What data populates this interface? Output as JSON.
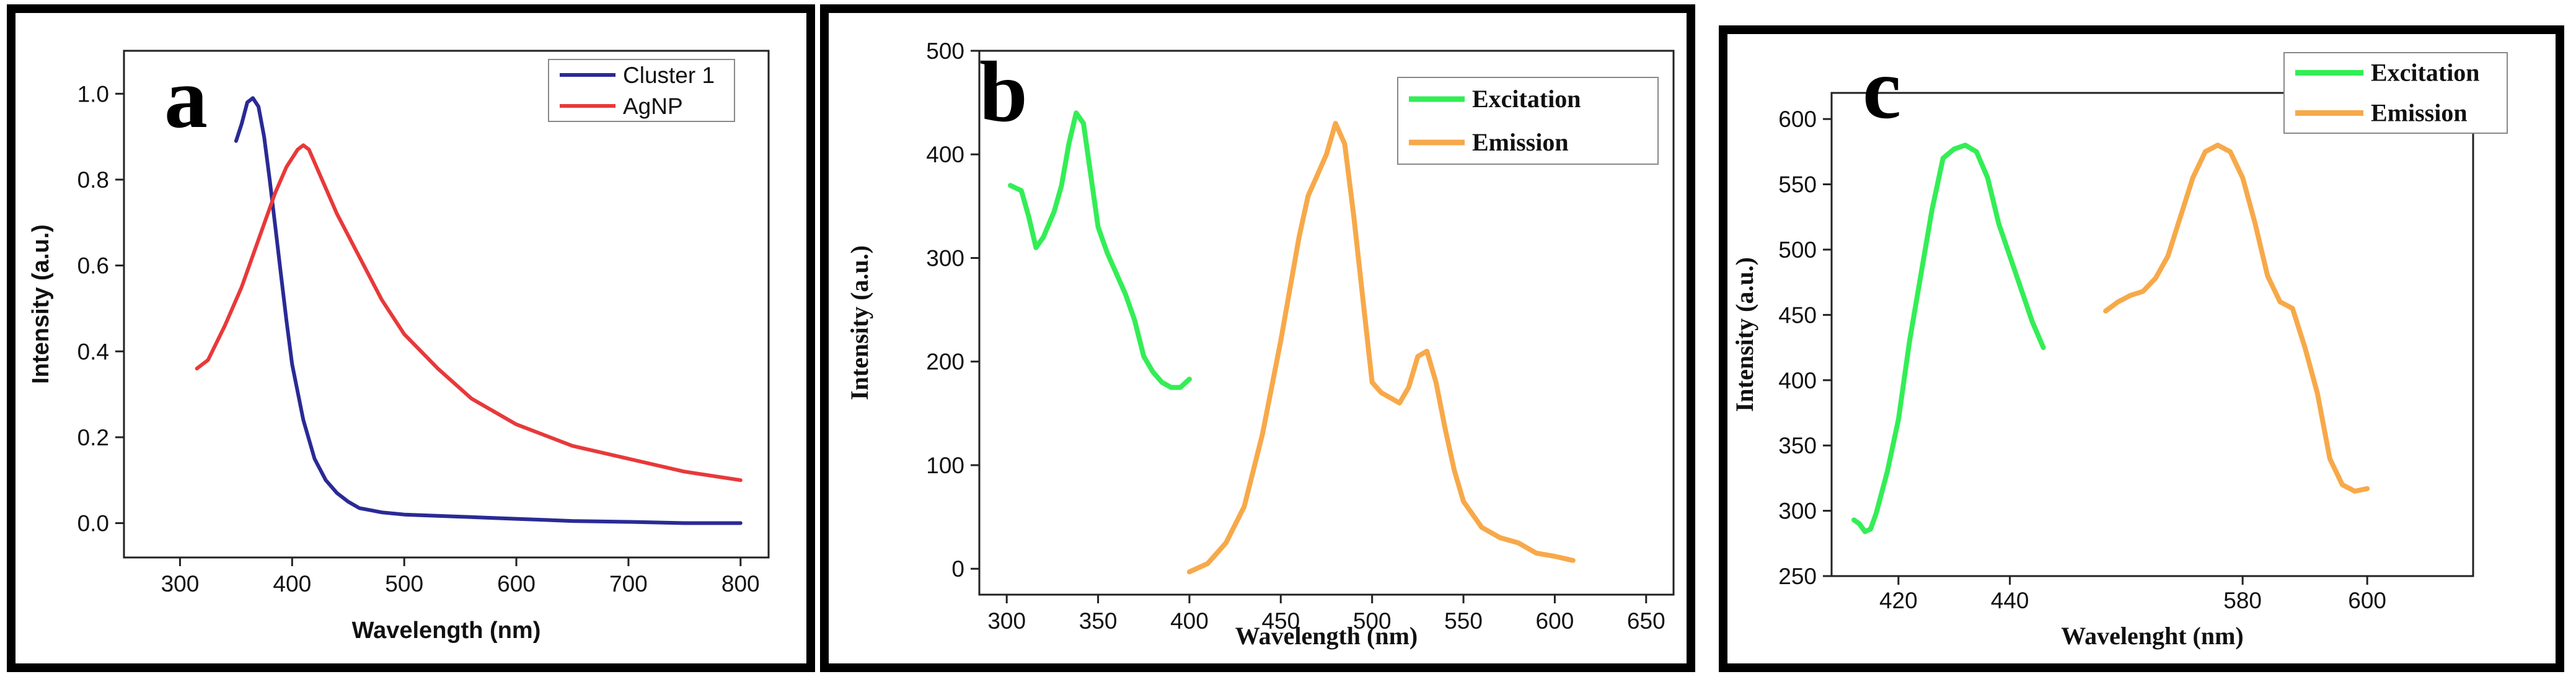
{
  "chart_data": [
    {
      "type": "line",
      "panel": "a",
      "xlabel": "Wavelength (nm)",
      "ylabel": "Intensity (a.u.)",
      "xlim": [
        250,
        825
      ],
      "ylim": [
        -0.08,
        1.1
      ],
      "xticks": [
        300,
        400,
        500,
        600,
        700,
        800
      ],
      "yticks": [
        0.0,
        0.2,
        0.4,
        0.6,
        0.8,
        1.0
      ],
      "ytick_labels": [
        "0.0",
        "0.2",
        "0.4",
        "0.6",
        "0.8",
        "1.0"
      ],
      "legend": "top-right",
      "series": [
        {
          "name": "Cluster 1",
          "color": "#2a2a96",
          "x": [
            350,
            355,
            360,
            365,
            370,
            375,
            380,
            385,
            390,
            395,
            400,
            410,
            420,
            430,
            440,
            450,
            460,
            470,
            480,
            500,
            520,
            550,
            580,
            600,
            650,
            700,
            750,
            800
          ],
          "y": [
            0.89,
            0.93,
            0.98,
            0.99,
            0.97,
            0.9,
            0.8,
            0.69,
            0.58,
            0.47,
            0.37,
            0.24,
            0.15,
            0.1,
            0.07,
            0.05,
            0.035,
            0.03,
            0.025,
            0.02,
            0.018,
            0.015,
            0.012,
            0.01,
            0.005,
            0.003,
            0.0,
            0.0
          ]
        },
        {
          "name": "AgNP",
          "color": "#e8393a",
          "x": [
            315,
            325,
            340,
            355,
            370,
            385,
            395,
            405,
            410,
            415,
            425,
            440,
            460,
            480,
            500,
            530,
            560,
            600,
            650,
            700,
            750,
            800
          ],
          "y": [
            0.36,
            0.38,
            0.46,
            0.55,
            0.66,
            0.77,
            0.83,
            0.87,
            0.88,
            0.87,
            0.81,
            0.72,
            0.62,
            0.52,
            0.44,
            0.36,
            0.29,
            0.23,
            0.18,
            0.15,
            0.12,
            0.1
          ]
        }
      ]
    },
    {
      "type": "line",
      "panel": "b",
      "xlabel": "Wavelength (nm)",
      "ylabel": "Intensity (a.u.)",
      "xlim": [
        285,
        665
      ],
      "ylim": [
        -25,
        500
      ],
      "xticks": [
        300,
        350,
        400,
        450,
        500,
        550,
        600,
        650
      ],
      "yticks": [
        0,
        100,
        200,
        300,
        400,
        500
      ],
      "legend": "top-right",
      "series": [
        {
          "name": "Excitation",
          "color": "#33ee55",
          "x": [
            302,
            308,
            312,
            316,
            320,
            326,
            330,
            334,
            338,
            342,
            346,
            350,
            355,
            360,
            365,
            370,
            375,
            380,
            385,
            390,
            395,
            400
          ],
          "y": [
            370,
            365,
            340,
            310,
            320,
            345,
            370,
            410,
            440,
            430,
            380,
            330,
            305,
            285,
            265,
            240,
            205,
            190,
            180,
            175,
            175,
            183
          ]
        },
        {
          "name": "Emission",
          "color": "#f7a94a",
          "x": [
            400,
            410,
            420,
            430,
            440,
            450,
            460,
            465,
            470,
            475,
            480,
            485,
            490,
            495,
            500,
            505,
            510,
            515,
            520,
            525,
            530,
            535,
            540,
            545,
            550,
            560,
            570,
            580,
            590,
            600,
            610
          ],
          "y": [
            -3,
            5,
            25,
            60,
            130,
            220,
            320,
            360,
            380,
            400,
            430,
            410,
            340,
            260,
            180,
            170,
            165,
            160,
            175,
            205,
            210,
            180,
            135,
            95,
            65,
            40,
            30,
            25,
            15,
            12,
            8
          ]
        }
      ]
    },
    {
      "type": "line",
      "panel": "c",
      "xlabel": "Wavelenght (nm)",
      "ylabel": "Intensity (a.u.)",
      "xlim": [
        408,
        617
      ],
      "ylim": [
        250,
        620
      ],
      "x_axis_break": "x-axis jumps from 440 to 560 (broken scale)",
      "xticks": [
        420,
        440,
        580,
        600
      ],
      "yticks": [
        250,
        300,
        350,
        400,
        450,
        500,
        550,
        600
      ],
      "legend": "top-right",
      "series": [
        {
          "name": "Excitation",
          "color": "#33ee55",
          "x": [
            412,
            413,
            414,
            415,
            416,
            418,
            420,
            422,
            424,
            426,
            428,
            430,
            432,
            434,
            436,
            438,
            440,
            442,
            444,
            446
          ],
          "y": [
            293,
            290,
            284,
            286,
            298,
            330,
            370,
            430,
            480,
            530,
            570,
            577,
            580,
            575,
            555,
            520,
            495,
            470,
            445,
            425
          ]
        },
        {
          "name": "Emission",
          "color": "#f7a94a",
          "x": [
            558,
            560,
            562,
            564,
            566,
            568,
            570,
            572,
            574,
            576,
            578,
            580,
            582,
            584,
            586,
            588,
            590,
            592,
            594,
            596,
            598,
            600
          ],
          "y": [
            453,
            460,
            465,
            468,
            478,
            495,
            525,
            555,
            575,
            580,
            575,
            555,
            520,
            480,
            460,
            455,
            425,
            390,
            340,
            320,
            315,
            317
          ]
        }
      ]
    }
  ],
  "panels": {
    "a": {
      "letter": "a"
    },
    "b": {
      "letter": "b"
    },
    "c": {
      "letter": "c"
    }
  }
}
